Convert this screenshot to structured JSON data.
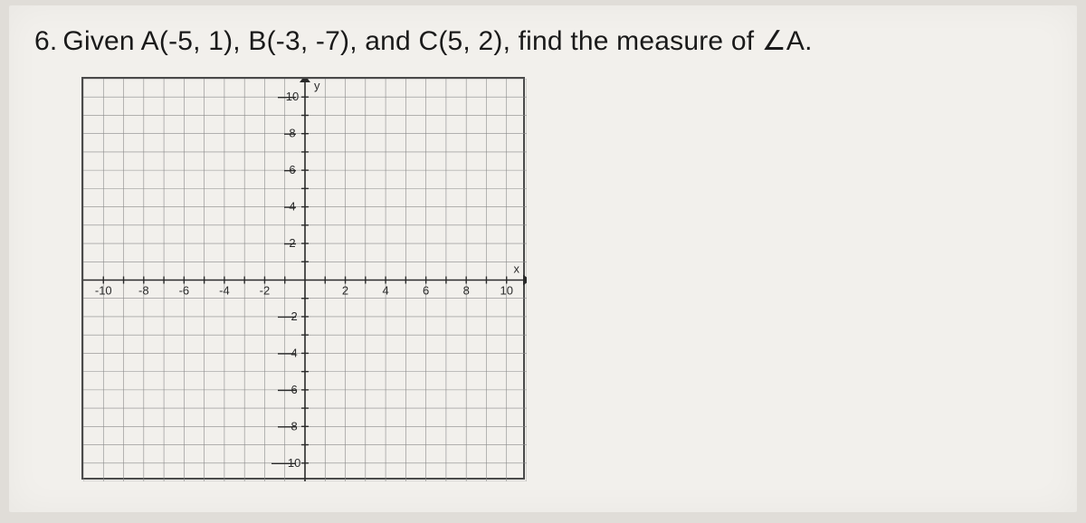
{
  "problem": {
    "number": "6.",
    "text_part1": "Given A(",
    "A": "-5, 1",
    "text_part2": "), B(",
    "B": "-3, -7",
    "text_part3": "), and C(",
    "C": "5, 2",
    "text_part4": "), find the measure of ",
    "angle_symbol": "∠",
    "angle_vertex": "A",
    "period": "."
  },
  "graph": {
    "xmin": -11,
    "xmax": 11,
    "ymin": -11,
    "ymax": 11,
    "grid_step": 1,
    "major_step": 2,
    "x_tick_labels": [
      -10,
      -8,
      -6,
      -4,
      -2,
      2,
      4,
      6,
      8,
      10
    ],
    "y_tick_labels": [
      10,
      8,
      6,
      4,
      2,
      -2,
      -4,
      -6,
      -8,
      -10
    ],
    "x_axis_label": "x",
    "y_axis_label": "y",
    "grid_color": "#8a8a8a",
    "axis_color": "#2a2a2a",
    "background_color": "#f2f0ec",
    "border_color": "#4a4a4a",
    "label_fontsize": 13
  }
}
